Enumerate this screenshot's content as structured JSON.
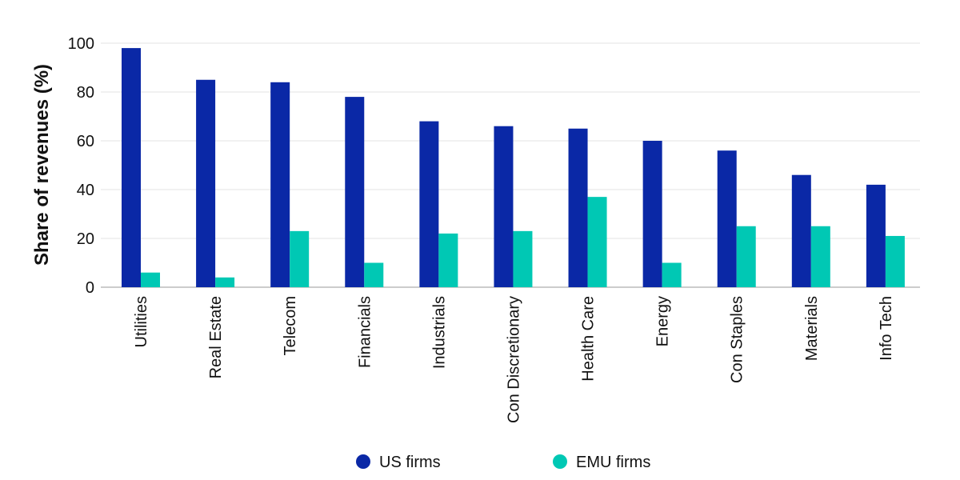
{
  "chart_data": {
    "type": "bar",
    "title": "",
    "xlabel": "",
    "ylabel": "Share of revenues (%)",
    "ylim": [
      0,
      100
    ],
    "yticks": [
      0,
      20,
      40,
      60,
      80,
      100
    ],
    "grid": true,
    "legend_position": "bottom",
    "categories": [
      "Utilities",
      "Real Estate",
      "Telecom",
      "Financials",
      "Industrials",
      "Con Discretionary",
      "Health Care",
      "Energy",
      "Con Staples",
      "Materials",
      "Info Tech"
    ],
    "series": [
      {
        "name": "US firms",
        "color": "#0a28a6",
        "values": [
          98,
          85,
          84,
          78,
          68,
          66,
          65,
          60,
          56,
          46,
          42
        ]
      },
      {
        "name": "EMU firms",
        "color": "#00c8b4",
        "values": [
          6,
          4,
          23,
          10,
          22,
          23,
          37,
          10,
          25,
          25,
          21
        ]
      }
    ]
  }
}
